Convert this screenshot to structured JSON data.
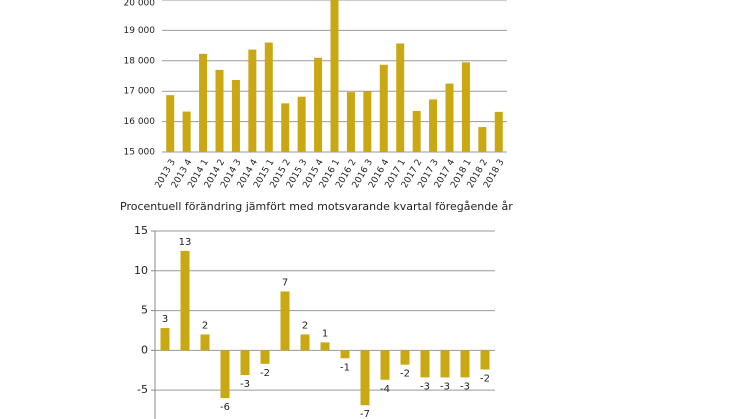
{
  "chart_data": [
    {
      "type": "bar",
      "categories": [
        "2013 3",
        "2013 4",
        "2014 1",
        "2014 2",
        "2014 3",
        "2014 4",
        "2015 1",
        "2015 2",
        "2015 3",
        "2015 4",
        "2016 1",
        "2016 2",
        "2016 3",
        "2016 4",
        "2017 1",
        "2017 2",
        "2017 3",
        "2017 4",
        "2018 1",
        "2018 2",
        "2018 3"
      ],
      "values": [
        16870,
        16330,
        18230,
        17700,
        17370,
        18370,
        18600,
        16600,
        16820,
        18100,
        20000,
        16970,
        17000,
        17870,
        18570,
        16350,
        16730,
        17250,
        17950,
        15820,
        16320
      ],
      "color": "#c9a814",
      "ylim": [
        15000,
        20000
      ],
      "yticks": [
        {
          "value": 15000,
          "label": "15 000"
        },
        {
          "value": 16000,
          "label": "16 000"
        },
        {
          "value": 17000,
          "label": "17 000"
        },
        {
          "value": 18000,
          "label": "18 000"
        },
        {
          "value": 19000,
          "label": "19 000"
        },
        {
          "value": 20000,
          "label": "20 000"
        }
      ],
      "grid": true
    },
    {
      "type": "bar",
      "title": "Procentuell förändring jämfört med motsvarande kvartal föregående år",
      "values": [
        2.8,
        12.5,
        2.0,
        -6.0,
        -3.1,
        -1.7,
        7.4,
        2.0,
        1.0,
        -1.0,
        -6.9,
        -3.7,
        -1.8,
        -3.4,
        -3.4,
        -3.4,
        -2.4
      ],
      "value_labels": [
        "3",
        "13",
        "2",
        "-6",
        "-3",
        "-2",
        "7",
        "2",
        "1",
        "-1",
        "-7",
        "-4",
        "-2",
        "-3",
        "-3",
        "-3",
        "-2"
      ],
      "color": "#c9a814",
      "ylim": [
        -8,
        15
      ],
      "yticks": [
        -5,
        0,
        5,
        10,
        15
      ],
      "grid": true
    }
  ]
}
